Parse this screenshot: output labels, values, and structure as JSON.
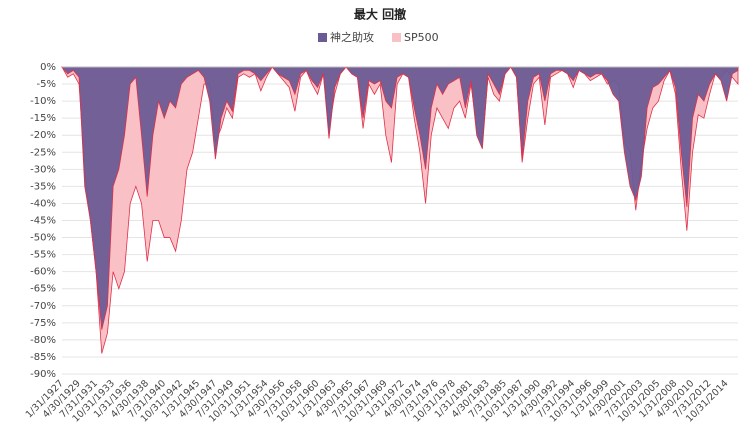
{
  "chart_data": {
    "type": "area",
    "title": "最大 回撤",
    "categories": [
      "1/31/1927",
      null,
      null,
      "4/30/1929",
      null,
      null,
      "7/31/1931",
      null,
      null,
      "10/31/1933",
      null,
      null,
      "1/31/1936",
      null,
      null,
      "4/30/1938",
      null,
      null,
      "7/31/1940",
      null,
      null,
      "10/31/1942",
      null,
      null,
      "1/31/1945",
      null,
      null,
      "4/30/1947",
      null,
      null,
      "7/31/1949",
      null,
      null,
      "10/31/1951",
      null,
      null,
      "1/31/1954",
      null,
      null,
      "4/30/1956",
      null,
      null,
      "7/31/1958",
      null,
      null,
      "10/31/1960",
      null,
      null,
      "1/31/1963",
      null,
      null,
      "4/30/1965",
      null,
      null,
      "7/31/1967",
      null,
      null,
      "10/31/1969",
      null,
      null,
      "1/31/1972",
      null,
      null,
      "4/30/1974",
      null,
      null,
      "7/31/1976",
      null,
      null,
      "10/31/1978",
      null,
      null,
      "1/31/1981",
      null,
      null,
      "4/30/1983",
      null,
      null,
      "7/31/1985",
      null,
      null,
      "10/31/1987",
      null,
      null,
      "1/31/1990",
      null,
      null,
      "4/30/1992",
      null,
      null,
      "7/31/1994",
      null,
      null,
      "10/31/1996",
      null,
      null,
      "1/31/1999",
      null,
      null,
      "4/30/2001",
      null,
      null,
      "7/31/2003",
      null,
      null,
      "10/31/2005",
      null,
      null,
      "1/31/2008",
      null,
      null,
      "4/30/2010",
      null,
      null,
      "7/31/2012",
      null,
      null,
      "10/31/2014",
      null,
      null
    ],
    "series": [
      {
        "name": "神之助攻",
        "color": "#6b5b95",
        "values": [
          0,
          -2,
          -1,
          -3,
          -35,
          -45,
          -60,
          -77,
          -70,
          -35,
          -30,
          -20,
          -5,
          -3,
          -20,
          -38,
          -20,
          -10,
          -15,
          -10,
          -12,
          -5,
          -3,
          -2,
          -1,
          -3,
          -10,
          -27,
          -15,
          -10,
          -13,
          -2,
          -1,
          -1,
          -2,
          -4,
          -2,
          0,
          -2,
          -3,
          -4,
          -8,
          -2,
          -1,
          -4,
          -6,
          -2,
          -21,
          -6,
          -2,
          0,
          -2,
          -3,
          -15,
          -4,
          -5,
          -4,
          -10,
          -12,
          -3,
          -2,
          -3,
          -12,
          -20,
          -30,
          -12,
          -5,
          -8,
          -5,
          -4,
          -3,
          -12,
          -4,
          -20,
          -24,
          -2,
          -5,
          -8,
          -2,
          0,
          -3,
          -27,
          -10,
          -3,
          -2,
          -10,
          -2,
          -1,
          -1,
          -2,
          -4,
          -1,
          -2,
          -3,
          -2,
          -2,
          -4,
          -8,
          -10,
          -25,
          -35,
          -39,
          -32,
          -12,
          -6,
          -5,
          -3,
          -1,
          -6,
          -25,
          -41,
          -15,
          -8,
          -10,
          -5,
          -2,
          -4,
          -10,
          -2,
          -1
        ]
      },
      {
        "name": "SP500",
        "color": "#f9c0c6",
        "values": [
          0,
          -3,
          -2,
          -5,
          -30,
          -45,
          -60,
          -84,
          -78,
          -60,
          -65,
          -60,
          -40,
          -35,
          -40,
          -57,
          -45,
          -45,
          -50,
          -50,
          -54,
          -45,
          -30,
          -25,
          -15,
          -5,
          -5,
          -22,
          -18,
          -12,
          -15,
          -3,
          -2,
          -3,
          -2,
          -7,
          -3,
          0,
          -2,
          -4,
          -6,
          -13,
          -3,
          -1,
          -5,
          -8,
          -2,
          -18,
          -8,
          -2,
          0,
          -2,
          -3,
          -18,
          -5,
          -8,
          -5,
          -20,
          -28,
          -5,
          -2,
          -3,
          -15,
          -25,
          -40,
          -20,
          -12,
          -15,
          -18,
          -12,
          -10,
          -15,
          -5,
          -18,
          -22,
          -3,
          -8,
          -10,
          -2,
          0,
          -3,
          -28,
          -15,
          -5,
          -3,
          -17,
          -3,
          -2,
          -1,
          -2,
          -6,
          -1,
          -2,
          -4,
          -3,
          -2,
          -5,
          -4,
          -5,
          -22,
          -25,
          -42,
          -28,
          -18,
          -12,
          -10,
          -4,
          -1,
          -8,
          -30,
          -48,
          -25,
          -14,
          -15,
          -8,
          -2,
          -3,
          -1,
          -3,
          -5
        ]
      }
    ],
    "ylim": [
      -90,
      0
    ],
    "yticks": [
      {
        "value": 0,
        "label": "0%"
      },
      {
        "value": -5,
        "label": "-5%"
      },
      {
        "value": -10,
        "label": "-10%"
      },
      {
        "value": -15,
        "label": "-15%"
      },
      {
        "value": -20,
        "label": "-20%"
      },
      {
        "value": -25,
        "label": "-25%"
      },
      {
        "value": -30,
        "label": "-30%"
      },
      {
        "value": -35,
        "label": "-35%"
      },
      {
        "value": -40,
        "label": "-40%"
      },
      {
        "value": -45,
        "label": "-45%"
      },
      {
        "value": -50,
        "label": "-50%"
      },
      {
        "value": -55,
        "label": "-55%"
      },
      {
        "value": -60,
        "label": "-60%"
      },
      {
        "value": -65,
        "label": "-65%"
      },
      {
        "value": -70,
        "label": "-70%"
      },
      {
        "value": -75,
        "label": "-75%"
      },
      {
        "value": -80,
        "label": "-80%"
      },
      {
        "value": -85,
        "label": "-85%"
      },
      {
        "value": -90,
        "label": "-90%"
      }
    ],
    "grid": true,
    "legend": "top",
    "edge_color": "#e03048"
  }
}
